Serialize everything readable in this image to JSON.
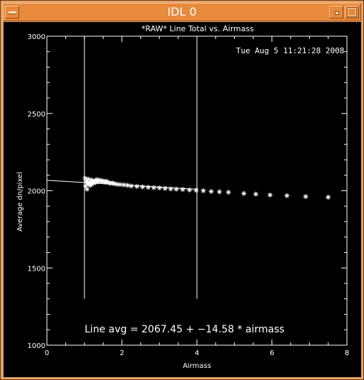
{
  "window": {
    "title": "IDL 0",
    "menu_icon": "window-menu-icon",
    "minimize_icon": "minimize-icon",
    "maximize_icon": "maximize-icon",
    "frame_color": "#e88a3c"
  },
  "plot": {
    "timestamp": "Tue Aug  5 11:21:28 2008",
    "fit_text": "Line avg = 2067.45 + −14.58 * airmass"
  },
  "chart_data": {
    "type": "scatter",
    "title": "*RAW* Line Total vs. Airmass",
    "xlabel": "Airmass",
    "ylabel": "Average dn/pixel",
    "xlim": [
      0,
      8
    ],
    "ylim": [
      1000,
      3000
    ],
    "xticks": [
      0,
      2,
      4,
      6,
      8
    ],
    "yticks": [
      1000,
      1500,
      2000,
      2500,
      3000
    ],
    "grid": false,
    "marker": "asterisk",
    "fit_line": {
      "intercept": 2067.45,
      "slope": -14.58,
      "x_range": [
        0,
        4
      ]
    },
    "vlines": [
      1,
      4
    ],
    "series": [
      {
        "x": [
          1.02,
          1.03,
          1.05,
          1.07,
          1.08,
          1.1,
          1.12,
          1.14,
          1.16,
          1.18,
          1.2,
          1.22,
          1.25,
          1.28,
          1.3,
          1.33,
          1.36,
          1.4,
          1.43,
          1.46,
          1.5,
          1.53,
          1.57,
          1.6,
          1.65,
          1.7,
          1.75,
          1.8,
          1.87,
          1.95,
          2.05,
          2.15,
          2.25,
          2.4,
          2.55,
          2.7,
          2.85,
          3.0,
          3.15,
          3.3,
          3.45,
          3.62,
          3.8,
          3.98,
          4.17,
          4.38,
          4.6,
          4.84,
          5.25,
          5.57,
          5.95,
          6.4,
          6.9,
          7.5
        ],
        "y": [
          2080,
          2030,
          2060,
          2010,
          2050,
          2075,
          2040,
          2055,
          2035,
          2070,
          2045,
          2060,
          2050,
          2065,
          2055,
          2072,
          2058,
          2068,
          2060,
          2065,
          2058,
          2062,
          2055,
          2060,
          2052,
          2048,
          2050,
          2045,
          2042,
          2040,
          2038,
          2035,
          2030,
          2028,
          2025,
          2022,
          2020,
          2018,
          2015,
          2012,
          2010,
          2008,
          2005,
          2003,
          2000,
          1995,
          1993,
          1990,
          1982,
          1978,
          1972,
          1968,
          1962,
          1958
        ]
      }
    ]
  }
}
